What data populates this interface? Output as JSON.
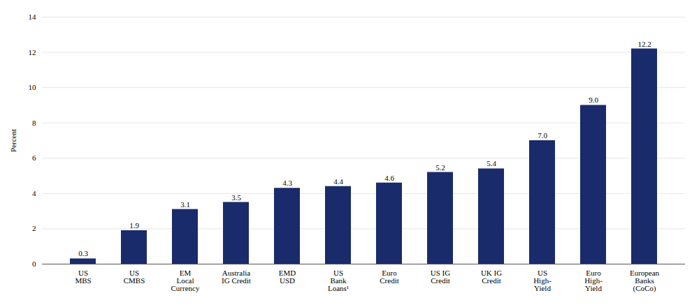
{
  "chart_data": {
    "type": "bar",
    "categories": [
      "US\nMBS",
      "US\nCMBS",
      "EM\nLocal\nCurrency",
      "Australia\nIG Credit",
      "EMD\nUSD",
      "US\nBank\nLoans¹",
      "Euro\nCredit",
      "US IG\nCredit",
      "UK IG\nCredit",
      "US\nHigh-\nYield",
      "Euro\nHigh-\nYield",
      "European\nBanks\n(CoCo)"
    ],
    "values": [
      0.3,
      1.9,
      3.1,
      3.5,
      4.3,
      4.4,
      4.6,
      5.2,
      5.4,
      7.0,
      9.0,
      12.2
    ],
    "value_labels": [
      "0.3",
      "1.9",
      "3.1",
      "3.5",
      "4.3",
      "4.4",
      "4.6",
      "5.2",
      "5.4",
      "7.0",
      "9.0",
      "12.2"
    ],
    "color": "#1a2b6b",
    "ylabel": "Percent",
    "ylim": [
      0,
      14
    ],
    "yticks": [
      0,
      2,
      4,
      6,
      8,
      10,
      12,
      14
    ],
    "grid": true,
    "data_labels": true
  }
}
